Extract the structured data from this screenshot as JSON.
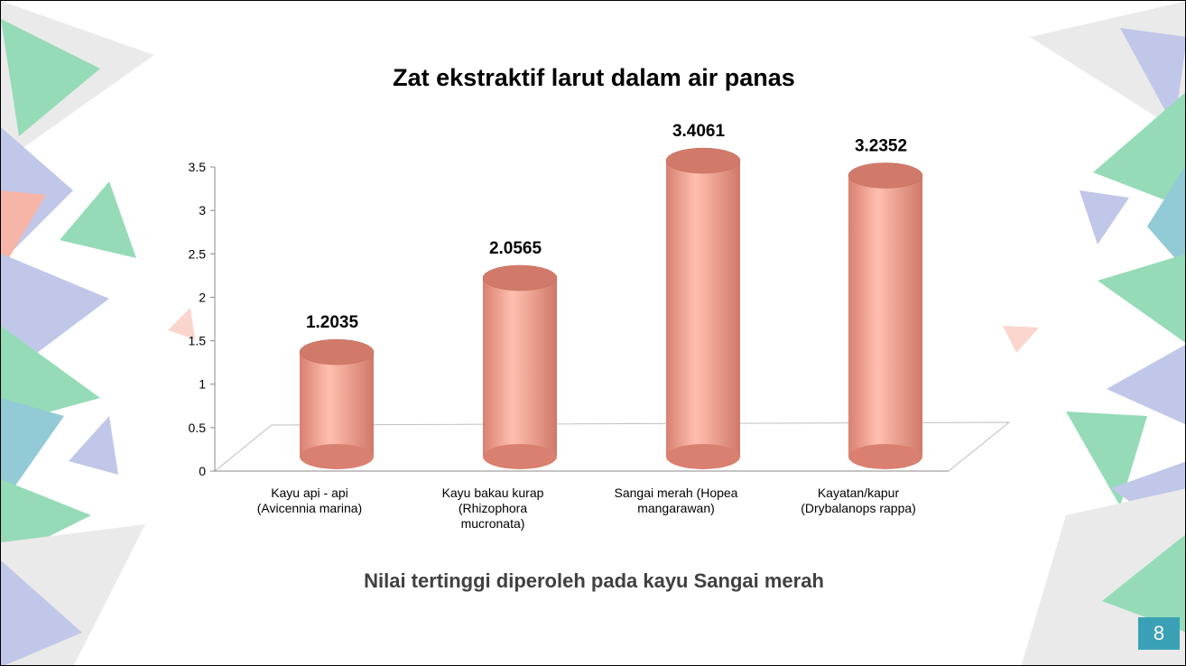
{
  "chart_data": {
    "type": "bar3d",
    "title": "Zat ekstraktif larut dalam air panas",
    "categories": [
      "Kayu api - api (Avicennia marina)",
      "Kayu bakau kurap (Rhizophora mucronata)",
      "Sangai merah (Hopea mangarawan)",
      "Kayatan/kapur (Drybalanops rappa)"
    ],
    "values": [
      1.2035,
      2.0565,
      3.4061,
      3.2352
    ],
    "color": "#f4a493",
    "ylim": [
      0,
      3.5
    ],
    "yticks": [
      0,
      0.5,
      1,
      1.5,
      2,
      2.5,
      3,
      3.5
    ]
  },
  "caption": "Nilai tertinggi diperoleh pada kayu Sangai merah",
  "page_number": "8"
}
